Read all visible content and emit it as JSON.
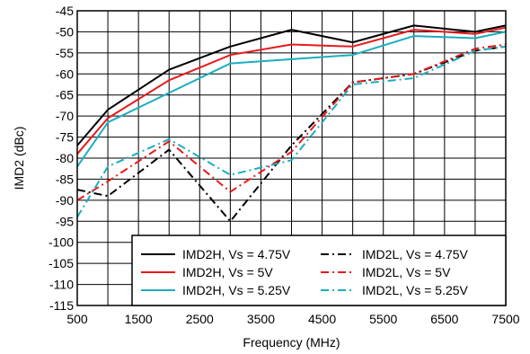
{
  "chart_data": {
    "type": "line",
    "xlabel": "Frequency (MHz)",
    "ylabel": "IMD2 (dBc)",
    "xlim": [
      500,
      7500
    ],
    "ylim": [
      -115,
      -45
    ],
    "x_ticks": [
      "500",
      "1500",
      "2500",
      "3500",
      "4500",
      "5500",
      "6500",
      "7500"
    ],
    "y_ticks": [
      "-45",
      "-50",
      "-55",
      "-60",
      "-65",
      "-70",
      "-75",
      "-80",
      "-85",
      "-90",
      "-95",
      "-100",
      "-105",
      "-110",
      "-115"
    ],
    "grid": true,
    "legend_position": "bottom-right",
    "colors": {
      "black": "#000000",
      "red": "#e8191b",
      "cyan": "#1aaebf"
    },
    "series": [
      {
        "name": "IMD2H, Vs = 4.75V",
        "color": "black",
        "dash": "solid",
        "x": [
          500,
          1000,
          2000,
          3000,
          4000,
          5000,
          6000,
          7000,
          7500
        ],
        "y": [
          -77,
          -68.5,
          -59,
          -53.5,
          -49.5,
          -52.5,
          -48.5,
          -50,
          -48.5
        ]
      },
      {
        "name": "IMD2L, Vs = 4.75V",
        "color": "black",
        "dash": "dashdot",
        "x": [
          500,
          1000,
          2000,
          3000,
          4000,
          5000,
          6000,
          7000,
          7500
        ],
        "y": [
          -87.5,
          -89,
          -78,
          -95,
          -77,
          -62,
          -60,
          -54.5,
          -53.5
        ]
      },
      {
        "name": "IMD2H, Vs = 5V",
        "color": "red",
        "dash": "solid",
        "x": [
          500,
          1000,
          2000,
          3000,
          4000,
          5000,
          6000,
          7000,
          7500
        ],
        "y": [
          -79,
          -70.5,
          -61.5,
          -55.5,
          -53,
          -53.5,
          -49.5,
          -50.5,
          -49
        ]
      },
      {
        "name": "IMD2L, Vs = 5V",
        "color": "red",
        "dash": "dashdot",
        "x": [
          500,
          1000,
          2000,
          3000,
          4000,
          5000,
          6000,
          7000,
          7500
        ],
        "y": [
          -90,
          -85.5,
          -76,
          -88,
          -78.5,
          -62,
          -60,
          -54,
          -53
        ]
      },
      {
        "name": "IMD2H, Vs = 5.25V",
        "color": "cyan",
        "dash": "solid",
        "x": [
          500,
          1000,
          2000,
          3000,
          4000,
          5000,
          6000,
          7000,
          7500
        ],
        "y": [
          -82,
          -71.5,
          -64.5,
          -57.5,
          -56.5,
          -55.5,
          -51,
          -51.5,
          -50
        ]
      },
      {
        "name": "IMD2L, Vs = 5.25V",
        "color": "cyan",
        "dash": "dashdot",
        "x": [
          500,
          1000,
          2000,
          3000,
          4000,
          5000,
          6000,
          7000,
          7500
        ],
        "y": [
          -94,
          -82,
          -75.5,
          -84,
          -80.5,
          -62.5,
          -61,
          -54.5,
          -53.5
        ]
      }
    ],
    "legend_order": [
      0,
      1,
      2,
      3,
      4,
      5
    ]
  }
}
